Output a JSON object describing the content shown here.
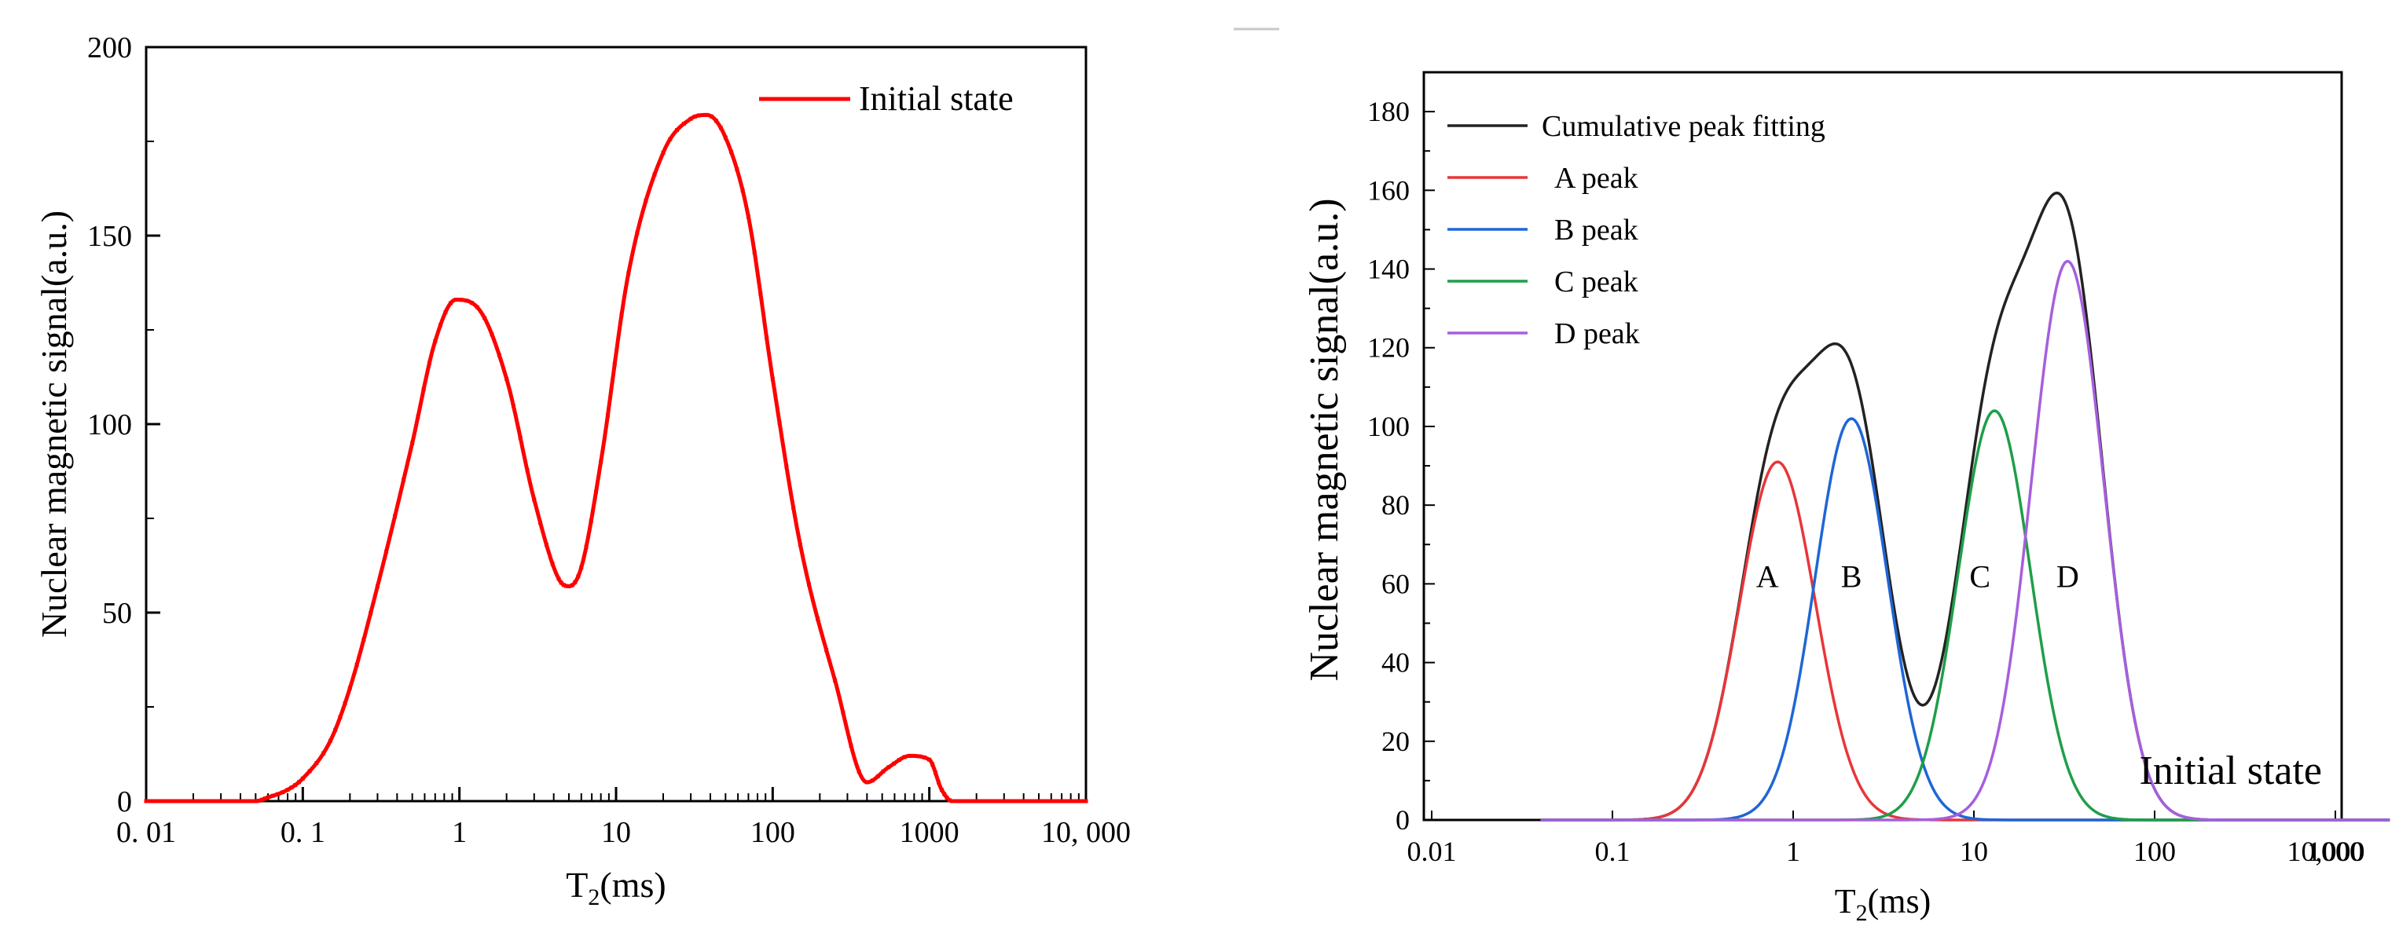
{
  "chart_data": [
    {
      "type": "line",
      "xscale": "log",
      "xlim": [
        0.01,
        10000
      ],
      "ylim": [
        0,
        200
      ],
      "xlabel": "T",
      "xlabel_sub": "2",
      "xlabel_unit": "(ms)",
      "ylabel": "Nuclear magnetic signal(a.u.)",
      "xticks": [
        {
          "value": 0.01,
          "label": "0. 01"
        },
        {
          "value": 0.1,
          "label": "0. 1"
        },
        {
          "value": 1,
          "label": "1"
        },
        {
          "value": 10,
          "label": "10"
        },
        {
          "value": 100,
          "label": "100"
        },
        {
          "value": 1000,
          "label": "1000"
        },
        {
          "value": 10000,
          "label": "10, 000"
        }
      ],
      "yticks": [
        {
          "value": 0,
          "label": "0"
        },
        {
          "value": 50,
          "label": "50"
        },
        {
          "value": 100,
          "label": "100"
        },
        {
          "value": 150,
          "label": "150"
        },
        {
          "value": 200,
          "label": "200"
        }
      ],
      "legend_position": "top-right",
      "series": [
        {
          "name": "Initial state",
          "color": "#ff0000",
          "x": [
            0.01,
            0.05,
            0.06,
            0.08,
            0.1,
            0.15,
            0.2,
            0.3,
            0.5,
            0.7,
            0.95,
            1.3,
            2.0,
            3.0,
            4.3,
            5.0,
            6.0,
            8.0,
            12,
            20,
            30,
            38,
            50,
            70,
            100,
            150,
            250,
            400,
            550,
            750,
            1000,
            1200,
            1400,
            2000,
            10000
          ],
          "y": [
            0,
            0,
            1,
            3,
            6,
            16,
            30,
            57,
            95,
            122,
            133,
            131,
            112,
            80,
            59,
            57,
            62,
            90,
            140,
            172,
            181,
            182,
            176,
            155,
            112,
            68,
            32,
            5,
            9,
            12,
            11,
            3,
            0,
            0,
            0
          ]
        }
      ]
    },
    {
      "type": "line",
      "xscale": "log",
      "xlim": [
        0.01,
        1000
      ],
      "ylim": [
        0,
        190
      ],
      "xlabel": "T",
      "xlabel_sub": "2",
      "xlabel_unit": "(ms)",
      "ylabel": "Nuclear magnetic signal(a.u.)",
      "xticks": [
        {
          "value": 0.01,
          "label": "0.01"
        },
        {
          "value": 0.1,
          "label": "0.1"
        },
        {
          "value": 1,
          "label": "1"
        },
        {
          "value": 10,
          "label": "10"
        },
        {
          "value": 100,
          "label": "100"
        },
        {
          "value": 1000,
          "label": "1000"
        }
      ],
      "extra_tick_label": "10,000",
      "yticks": [
        {
          "value": 0,
          "label": "0"
        },
        {
          "value": 20,
          "label": "20"
        },
        {
          "value": 40,
          "label": "40"
        },
        {
          "value": 60,
          "label": "60"
        },
        {
          "value": 80,
          "label": "80"
        },
        {
          "value": 100,
          "label": "100"
        },
        {
          "value": 120,
          "label": "120"
        },
        {
          "value": 140,
          "label": "140"
        },
        {
          "value": 160,
          "label": "160"
        },
        {
          "value": 180,
          "label": "180"
        }
      ],
      "legend_position": "top-left",
      "title_annotation": "Initial state",
      "peak_labels": [
        {
          "text": "A",
          "x": 0.72,
          "y": 62
        },
        {
          "text": "B",
          "x": 2.1,
          "y": 62
        },
        {
          "text": "C",
          "x": 10.8,
          "y": 62
        },
        {
          "text": "D",
          "x": 33,
          "y": 62
        }
      ],
      "series": [
        {
          "name": "Cumulative peak fitting",
          "color": "#222222",
          "kind": "sum"
        },
        {
          "name": "A peak",
          "color": "#e8363a",
          "kind": "gauss",
          "center": 0.82,
          "amp": 91,
          "sigma": 0.21
        },
        {
          "name": "B peak",
          "color": "#1f66d6",
          "kind": "gauss",
          "center": 2.1,
          "amp": 102,
          "sigma": 0.2
        },
        {
          "name": "C peak",
          "color": "#1f9e4a",
          "kind": "gauss",
          "center": 13,
          "amp": 104,
          "sigma": 0.2
        },
        {
          "name": "D peak",
          "color": "#a65fdc",
          "kind": "gauss",
          "center": 33,
          "amp": 142,
          "sigma": 0.2
        }
      ]
    }
  ]
}
